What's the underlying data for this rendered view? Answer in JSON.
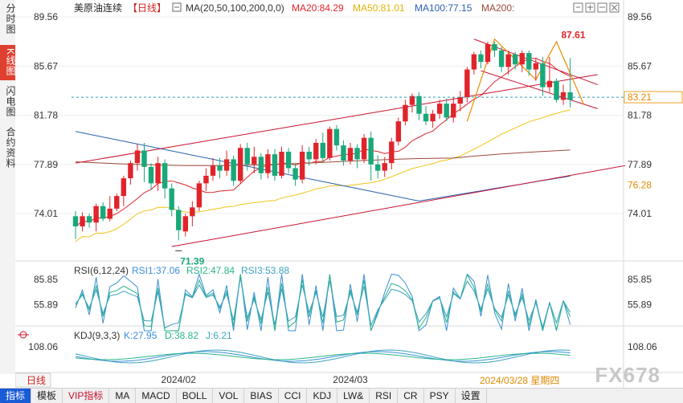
{
  "side_tabs": [
    "分时图",
    "K线图",
    "闪电图",
    "合约资料"
  ],
  "header": {
    "instrument": "美原油连续",
    "period_tag": "【日线】",
    "ma_label": "MA(20,50,100,200,0,0)",
    "ma20": "MA20:84.29",
    "ma50": "MA50:81.01",
    "ma100": "MA100:77.15",
    "ma200": "MA200:"
  },
  "rsi_header": {
    "label": "RSI(6,12,24)",
    "rsi1": "RSI1:37.06",
    "rsi2": "RSI2:47.84",
    "rsi3": "RSI3:53.88"
  },
  "kdj_header": {
    "label": "KDJ(9,3,3)",
    "k": "K:27.95",
    "d": "D:38.82",
    "j": "J:6.21"
  },
  "annotations": {
    "high": "87.61",
    "low": "71.39",
    "current": "83.21",
    "ma_right": "76.28"
  },
  "footer": {
    "period_button": "日线",
    "date_label": "2024/03/28 星期四"
  },
  "watermark": "FX678",
  "bottom_tabs": [
    "指标",
    "模板",
    "VIP指标",
    "MA",
    "MACD",
    "BOLL",
    "VOL",
    "BIAS",
    "CCI",
    "KDJ",
    "LW&",
    "RSI",
    "CR",
    "PSY",
    "设置"
  ],
  "colors": {
    "up": "#e0242b",
    "down": "#19a87a",
    "ma20": "#e0242b",
    "ma50": "#f0c419",
    "ma100": "#2a62b0",
    "ma200": "#9b4a3a",
    "channel": "#c8102e",
    "pattern": "#f08a00"
  },
  "chart_data": {
    "type": "candlestick",
    "y_ticks": [
      89.56,
      85.67,
      81.78,
      77.89,
      74.01
    ],
    "x_labels": [
      "2024/02",
      "2024/03"
    ],
    "candles": [
      [
        73.8,
        73.0,
        74.2,
        72.0
      ],
      [
        73.0,
        73.8,
        74.1,
        72.6
      ],
      [
        73.8,
        73.3,
        74.0,
        72.9
      ],
      [
        73.3,
        74.6,
        74.8,
        72.6
      ],
      [
        74.6,
        73.6,
        74.9,
        73.4
      ],
      [
        73.6,
        74.4,
        75.4,
        73.4
      ],
      [
        74.4,
        75.4,
        75.6,
        74.2
      ],
      [
        75.4,
        76.8,
        77.0,
        74.6
      ],
      [
        76.8,
        78.0,
        78.2,
        76.3
      ],
      [
        78.0,
        79.0,
        79.5,
        77.4
      ],
      [
        79.0,
        77.7,
        79.6,
        76.5
      ],
      [
        77.7,
        76.4,
        78.0,
        75.9
      ],
      [
        76.4,
        78.0,
        78.5,
        75.8
      ],
      [
        78.0,
        76.0,
        78.3,
        75.2
      ],
      [
        76.0,
        74.3,
        76.4,
        73.8
      ],
      [
        74.3,
        72.7,
        74.6,
        71.9
      ],
      [
        72.6,
        73.8,
        74.0,
        72.2
      ],
      [
        73.8,
        74.5,
        75.0,
        73.0
      ],
      [
        74.5,
        76.4,
        76.6,
        74.2
      ],
      [
        76.4,
        77.0,
        77.6,
        75.8
      ],
      [
        77.0,
        77.8,
        78.4,
        76.6
      ],
      [
        77.8,
        77.4,
        78.4,
        76.8
      ],
      [
        77.4,
        78.3,
        79.0,
        77.0
      ],
      [
        78.3,
        76.6,
        78.6,
        76.2
      ],
      [
        76.6,
        79.2,
        79.5,
        76.4
      ],
      [
        79.2,
        77.9,
        79.6,
        77.4
      ],
      [
        77.9,
        78.5,
        79.3,
        77.2
      ],
      [
        78.5,
        77.2,
        78.8,
        76.7
      ],
      [
        77.2,
        78.7,
        79.1,
        76.8
      ],
      [
        78.7,
        77.0,
        79.1,
        76.6
      ],
      [
        77.0,
        78.9,
        79.3,
        76.8
      ],
      [
        78.9,
        77.6,
        79.2,
        77.2
      ],
      [
        77.6,
        76.7,
        78.0,
        76.2
      ],
      [
        76.7,
        78.9,
        79.4,
        76.4
      ],
      [
        78.9,
        78.3,
        79.3,
        77.8
      ],
      [
        78.3,
        79.6,
        79.9,
        77.9
      ],
      [
        79.6,
        78.4,
        80.4,
        78.0
      ],
      [
        78.4,
        80.7,
        80.9,
        78.2
      ],
      [
        80.7,
        79.4,
        81.0,
        79.0
      ],
      [
        79.4,
        78.2,
        79.8,
        77.8
      ],
      [
        78.2,
        79.2,
        79.6,
        77.9
      ],
      [
        79.2,
        78.3,
        79.5,
        77.6
      ],
      [
        78.3,
        80.0,
        80.3,
        78.0
      ],
      [
        80.0,
        77.9,
        80.5,
        76.6
      ],
      [
        77.9,
        77.4,
        78.6,
        76.8
      ],
      [
        77.4,
        78.0,
        78.5,
        76.9
      ],
      [
        78.0,
        79.7,
        80.0,
        77.5
      ],
      [
        79.7,
        81.3,
        81.6,
        79.4
      ],
      [
        81.3,
        82.6,
        83.0,
        81.0
      ],
      [
        82.6,
        83.3,
        83.5,
        82.0
      ],
      [
        83.3,
        81.9,
        83.6,
        81.4
      ],
      [
        81.9,
        81.3,
        82.5,
        81.0
      ],
      [
        81.3,
        81.9,
        82.2,
        80.8
      ],
      [
        81.9,
        82.7,
        83.0,
        81.5
      ],
      [
        82.7,
        81.6,
        83.1,
        81.3
      ],
      [
        81.6,
        82.7,
        83.2,
        81.2
      ],
      [
        82.7,
        83.2,
        83.7,
        82.1
      ],
      [
        83.2,
        85.4,
        85.6,
        82.8
      ],
      [
        85.4,
        86.6,
        86.8,
        85.0
      ],
      [
        86.6,
        86.0,
        86.9,
        85.5
      ],
      [
        86.0,
        87.4,
        87.6,
        85.8
      ],
      [
        87.4,
        86.9,
        87.6,
        86.4
      ],
      [
        86.9,
        85.6,
        87.2,
        85.2
      ],
      [
        85.6,
        86.6,
        86.9,
        85.0
      ],
      [
        86.6,
        85.8,
        86.8,
        85.4
      ],
      [
        85.8,
        86.7,
        86.9,
        85.2
      ],
      [
        86.7,
        85.4,
        86.9,
        84.9
      ],
      [
        85.4,
        85.9,
        86.3,
        84.5
      ],
      [
        85.9,
        84.0,
        86.4,
        83.3
      ],
      [
        84.0,
        84.5,
        86.4,
        83.6
      ],
      [
        84.5,
        83.0,
        84.7,
        82.8
      ],
      [
        83.0,
        83.6,
        84.2,
        82.6
      ],
      [
        83.6,
        83.0,
        86.3,
        82.4
      ]
    ],
    "indicators": {
      "ma20": 84.29,
      "ma50": 81.01,
      "ma100": 77.15,
      "rsi1": 37.06,
      "rsi2": 47.84,
      "rsi3": 53.88,
      "k": 27.95,
      "d": 38.82,
      "j": 6.21
    },
    "high_mark": 87.61,
    "low_mark": 71.39,
    "current_price": 83.21
  }
}
